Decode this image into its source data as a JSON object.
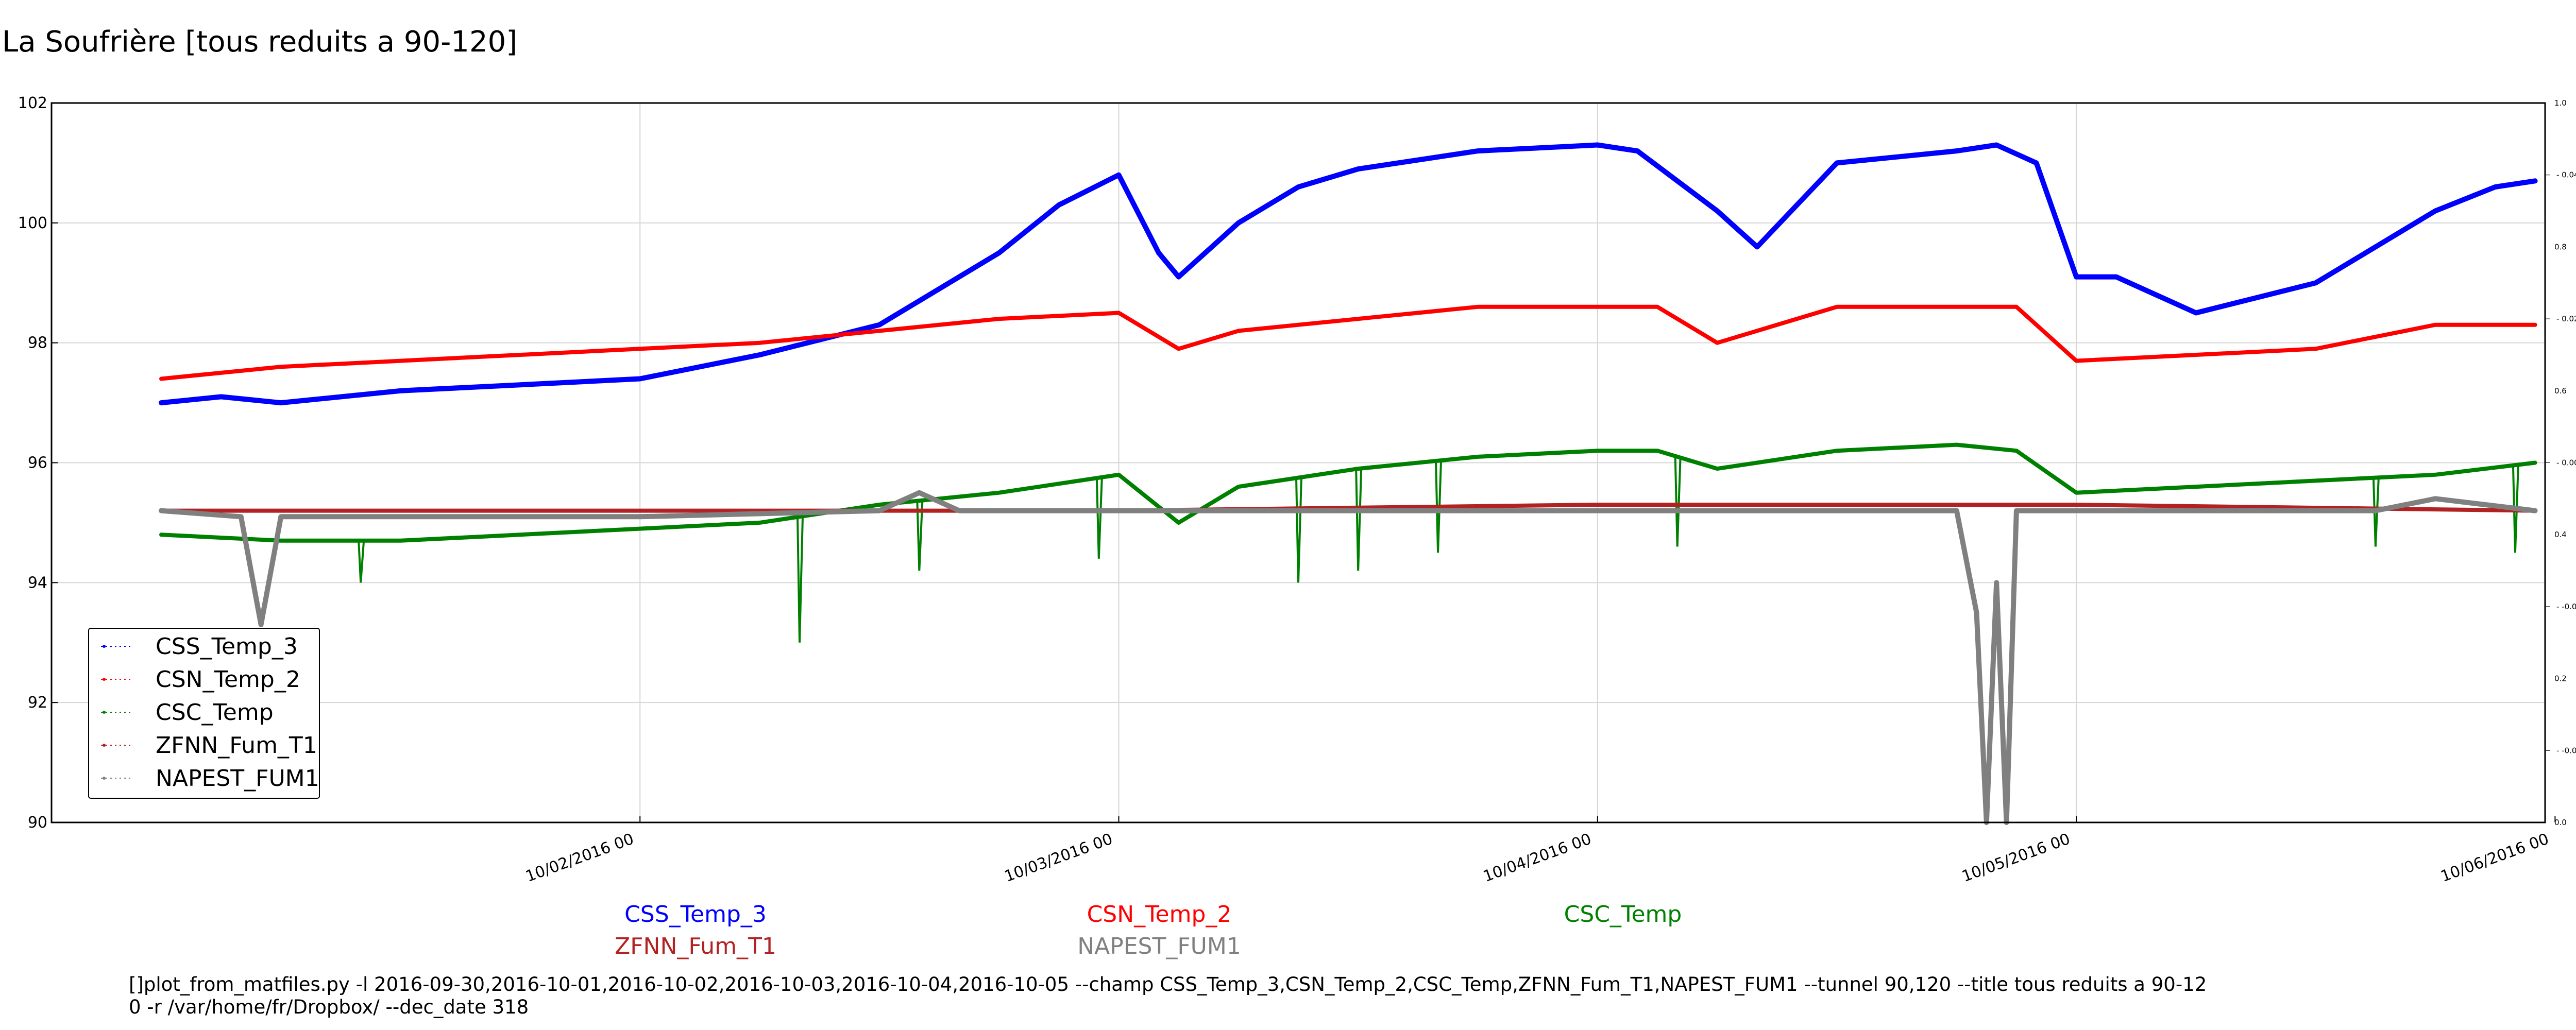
{
  "chart_data": {
    "type": "line",
    "title": "La Soufrière [tous reduits a 90-120]",
    "xlabel": "",
    "ylabel": "",
    "x_range": [
      "2016-09-30T18:30",
      "2016-10-05T23:30"
    ],
    "ylim": [
      90,
      102
    ],
    "y_ticks": [
      "90",
      "92",
      "94",
      "96",
      "98",
      "100",
      "102"
    ],
    "x_ticks": [
      {
        "x": "2016-10-02T00:00",
        "label": "10/02/2016 00"
      },
      {
        "x": "2016-10-03T00:00",
        "label": "10/03/2016 00"
      },
      {
        "x": "2016-10-04T00:00",
        "label": "10/04/2016 00"
      },
      {
        "x": "2016-10-05T00:00",
        "label": "10/05/2016 00"
      },
      {
        "x": "2016-10-06T00:00",
        "label": "10/06/2016 00"
      }
    ],
    "right_axis_ticks_outer": [
      "1.0",
      "0.8",
      "0.6",
      "0.4",
      "0.2",
      "0.0"
    ],
    "right_axis_ticks_inner": [
      "0.04",
      "0.02",
      "0.00",
      "-0.02",
      "-0.04"
    ],
    "grid": true,
    "legend_position": "lower-left",
    "series": [
      {
        "name": "CSS_Temp_3",
        "color": "#0000ff",
        "x": [
          "2016-10-01T00:00",
          "2016-10-01T03:00",
          "2016-10-01T06:00",
          "2016-10-01T12:00",
          "2016-10-01T18:00",
          "2016-10-02T00:00",
          "2016-10-02T06:00",
          "2016-10-02T12:00",
          "2016-10-02T18:00",
          "2016-10-02T21:00",
          "2016-10-03T00:00",
          "2016-10-03T02:00",
          "2016-10-03T03:00",
          "2016-10-03T06:00",
          "2016-10-03T09:00",
          "2016-10-03T12:00",
          "2016-10-03T18:00",
          "2016-10-04T00:00",
          "2016-10-04T02:00",
          "2016-10-04T06:00",
          "2016-10-04T08:00",
          "2016-10-04T12:00",
          "2016-10-04T18:00",
          "2016-10-04T20:00",
          "2016-10-04T22:00",
          "2016-10-05T00:00",
          "2016-10-05T02:00",
          "2016-10-05T06:00",
          "2016-10-05T12:00",
          "2016-10-05T18:00",
          "2016-10-05T21:00",
          "2016-10-05T23:00"
        ],
        "values": [
          97.0,
          97.1,
          97.0,
          97.2,
          97.3,
          97.4,
          97.8,
          98.3,
          99.5,
          100.3,
          100.8,
          99.5,
          99.1,
          100.0,
          100.6,
          100.9,
          101.2,
          101.3,
          101.2,
          100.2,
          99.6,
          101.0,
          101.2,
          101.3,
          101.0,
          99.1,
          99.1,
          98.5,
          99.0,
          100.2,
          100.6,
          100.7
        ]
      },
      {
        "name": "CSN_Temp_2",
        "color": "#ff0000",
        "x": [
          "2016-10-01T00:00",
          "2016-10-01T06:00",
          "2016-10-01T12:00",
          "2016-10-01T18:00",
          "2016-10-02T00:00",
          "2016-10-02T06:00",
          "2016-10-02T12:00",
          "2016-10-02T18:00",
          "2016-10-03T00:00",
          "2016-10-03T03:00",
          "2016-10-03T06:00",
          "2016-10-03T12:00",
          "2016-10-03T18:00",
          "2016-10-04T00:00",
          "2016-10-04T03:00",
          "2016-10-04T06:00",
          "2016-10-04T12:00",
          "2016-10-04T18:00",
          "2016-10-04T21:00",
          "2016-10-05T00:00",
          "2016-10-05T06:00",
          "2016-10-05T12:00",
          "2016-10-05T18:00",
          "2016-10-05T23:00"
        ],
        "values": [
          97.4,
          97.6,
          97.7,
          97.8,
          97.9,
          98.0,
          98.2,
          98.4,
          98.5,
          97.9,
          98.2,
          98.4,
          98.6,
          98.6,
          98.6,
          98.0,
          98.6,
          98.6,
          98.6,
          97.7,
          97.8,
          97.9,
          98.3,
          98.3
        ]
      },
      {
        "name": "CSC_Temp",
        "color": "#008000",
        "x": [
          "2016-10-01T00:00",
          "2016-10-01T06:00",
          "2016-10-01T12:00",
          "2016-10-01T18:00",
          "2016-10-02T00:00",
          "2016-10-02T06:00",
          "2016-10-02T12:00",
          "2016-10-02T18:00",
          "2016-10-03T00:00",
          "2016-10-03T03:00",
          "2016-10-03T06:00",
          "2016-10-03T12:00",
          "2016-10-03T18:00",
          "2016-10-04T00:00",
          "2016-10-04T03:00",
          "2016-10-04T06:00",
          "2016-10-04T12:00",
          "2016-10-04T18:00",
          "2016-10-04T21:00",
          "2016-10-05T00:00",
          "2016-10-05T06:00",
          "2016-10-05T12:00",
          "2016-10-05T18:00",
          "2016-10-05T23:00"
        ],
        "values": [
          94.8,
          94.7,
          94.7,
          94.8,
          94.9,
          95.0,
          95.3,
          95.5,
          95.8,
          95.0,
          95.6,
          95.9,
          96.1,
          96.2,
          96.2,
          95.9,
          96.2,
          96.3,
          96.2,
          95.5,
          95.6,
          95.7,
          95.8,
          96.0
        ],
        "dips": [
          {
            "x": "2016-10-01T10:00",
            "y": 94.0
          },
          {
            "x": "2016-10-02T08:00",
            "y": 93.0
          },
          {
            "x": "2016-10-02T14:00",
            "y": 94.2
          },
          {
            "x": "2016-10-02T23:00",
            "y": 94.4
          },
          {
            "x": "2016-10-03T09:00",
            "y": 94.0
          },
          {
            "x": "2016-10-03T12:00",
            "y": 94.2
          },
          {
            "x": "2016-10-03T16:00",
            "y": 94.5
          },
          {
            "x": "2016-10-04T04:00",
            "y": 94.6
          },
          {
            "x": "2016-10-05T15:00",
            "y": 94.6
          },
          {
            "x": "2016-10-05T22:00",
            "y": 94.5
          }
        ]
      },
      {
        "name": "ZFNN_Fum_T1",
        "color": "#b22222",
        "x": [
          "2016-10-01T00:00",
          "2016-10-02T00:00",
          "2016-10-03T00:00",
          "2016-10-04T00:00",
          "2016-10-05T00:00",
          "2016-10-05T23:00"
        ],
        "values": [
          95.2,
          95.2,
          95.2,
          95.3,
          95.3,
          95.2
        ]
      },
      {
        "name": "NAPEST_FUM1",
        "color": "#808080",
        "x": [
          "2016-10-01T00:00",
          "2016-10-01T04:00",
          "2016-10-01T05:00",
          "2016-10-01T06:00",
          "2016-10-02T00:00",
          "2016-10-02T12:00",
          "2016-10-02T14:00",
          "2016-10-02T16:00",
          "2016-10-03T00:00",
          "2016-10-04T00:00",
          "2016-10-04T18:00",
          "2016-10-04T19:00",
          "2016-10-04T19:30",
          "2016-10-04T20:00",
          "2016-10-04T20:30",
          "2016-10-04T21:00",
          "2016-10-04T22:00",
          "2016-10-05T00:00",
          "2016-10-05T15:00",
          "2016-10-05T18:00",
          "2016-10-05T23:00"
        ],
        "values": [
          95.2,
          95.1,
          93.3,
          95.1,
          95.1,
          95.2,
          95.5,
          95.2,
          95.2,
          95.2,
          95.2,
          93.5,
          90.0,
          94.0,
          90.0,
          95.2,
          95.2,
          95.2,
          95.2,
          95.4,
          95.2
        ]
      }
    ]
  },
  "legend_items": [
    "CSS_Temp_3",
    "CSN_Temp_2",
    "CSC_Temp",
    "ZFNN_Fum_T1",
    "NAPEST_FUM1"
  ],
  "command": "[]plot_from_matfiles.py -l 2016-09-30,2016-10-01,2016-10-02,2016-10-03,2016-10-04,2016-10-05 --champ CSS_Temp_3,CSN_Temp_2,CSC_Temp,ZFNN_Fum_T1,NAPEST_FUM1 --tunnel 90,120 --title tous reduits a 90-12\n0 -r /var/home/fr/Dropbox/ --dec_date 318"
}
